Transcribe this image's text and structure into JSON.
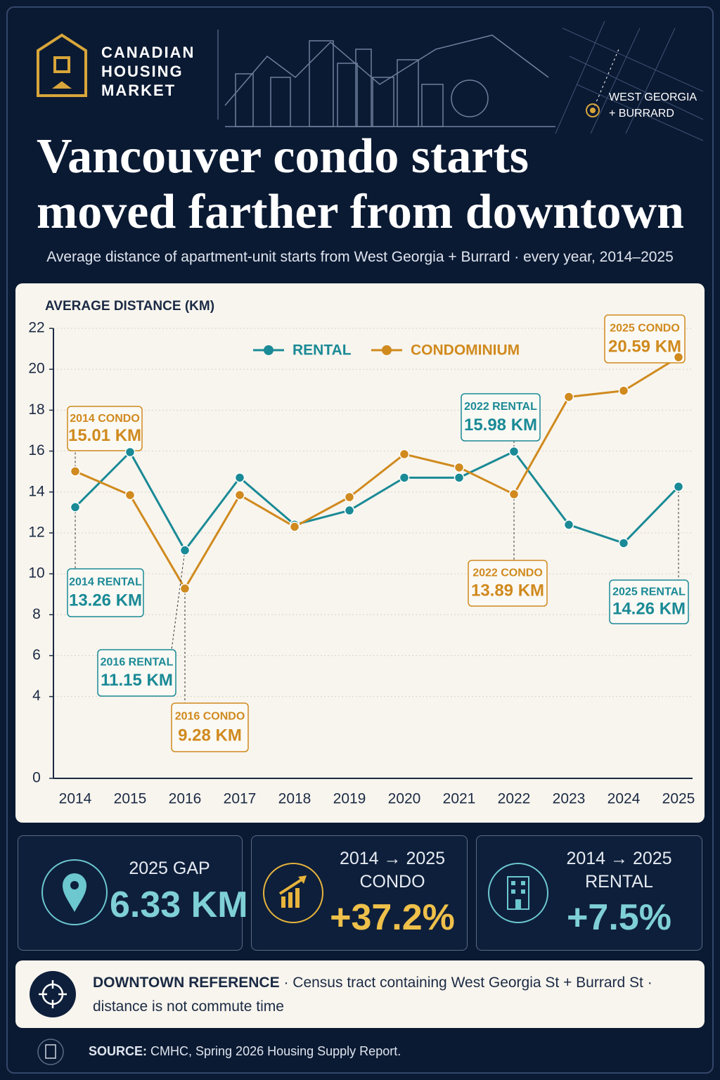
{
  "header": {
    "brand": [
      "CANADIAN",
      "HOUSING",
      "MARKET"
    ],
    "map_label": [
      "WEST GEORGIA",
      "+ BURRARD"
    ],
    "title": [
      "Vancouver condo starts",
      "moved farther from downtown"
    ],
    "subtitle": "Average distance of apartment-unit starts from West Georgia + Burrard · every year, 2014–2025"
  },
  "chart_data": {
    "type": "line",
    "y_label": "AVERAGE DISTANCE (KM)",
    "categories": [
      "2014",
      "2015",
      "2016",
      "2017",
      "2018",
      "2019",
      "2020",
      "2021",
      "2022",
      "2023",
      "2024",
      "2025"
    ],
    "series": [
      {
        "name": "RENTAL",
        "color": "#1a8a96",
        "values": [
          13.26,
          15.95,
          11.15,
          14.7,
          12.4,
          13.1,
          14.7,
          14.7,
          15.98,
          12.4,
          11.5,
          14.26
        ],
        "value_labels": [
          "13.26 KM",
          null,
          "11.15 KM",
          null,
          null,
          null,
          null,
          null,
          "15.98 KM",
          null,
          null,
          "14.26 KM"
        ],
        "point_labels": [
          "2014 RENTAL",
          null,
          "2016 RENTAL",
          null,
          null,
          null,
          null,
          null,
          "2022 RENTAL",
          null,
          null,
          "2025 RENTAL"
        ]
      },
      {
        "name": "CONDOMINIUM",
        "color": "#d08a1e",
        "values": [
          15.01,
          13.85,
          9.28,
          13.85,
          12.3,
          13.75,
          15.85,
          15.2,
          13.89,
          18.65,
          18.95,
          20.59
        ],
        "value_labels": [
          "15.01 KM",
          null,
          "9.28 KM",
          null,
          null,
          null,
          null,
          null,
          "13.89 KM",
          null,
          null,
          "20.59 KM"
        ],
        "point_labels": [
          "2014 CONDO",
          null,
          "2016 CONDO",
          null,
          null,
          null,
          null,
          null,
          "2022 CONDO",
          null,
          null,
          "2025 CONDO"
        ]
      }
    ],
    "ylim": [
      0,
      22
    ],
    "yticks": [
      0,
      4,
      6,
      8,
      10,
      12,
      14,
      16,
      18,
      20,
      22
    ],
    "grid": true,
    "legend": "top"
  },
  "stats": [
    {
      "label": [
        "2025 GAP"
      ],
      "value": "6.33 KM"
    },
    {
      "label": [
        "2014 → 2025",
        "CONDO"
      ],
      "value": "+37.2%"
    },
    {
      "label": [
        "2014 → 2025",
        "RENTAL"
      ],
      "value": "+7.5%"
    }
  ],
  "note": {
    "heading": "DOWNTOWN REFERENCE",
    "text": "· Census tract containing West Georgia St + Burrard St ·",
    "text2": "distance is not commute time"
  },
  "source": {
    "heading": "SOURCE:",
    "text": "CMHC, Spring 2026 Housing Supply Report."
  }
}
